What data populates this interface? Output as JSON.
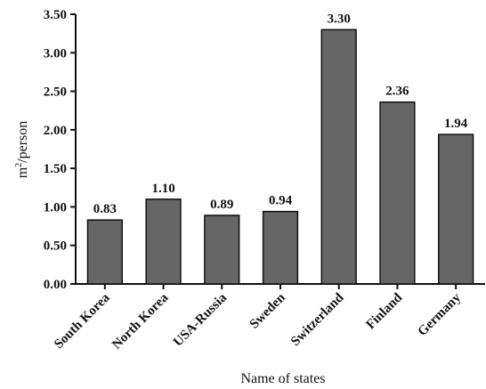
{
  "chart_data": {
    "type": "bar",
    "categories": [
      "South Korea",
      "North Korea",
      "USA-Russia",
      "Sweden",
      "Switzerland",
      "Finland",
      "Germany"
    ],
    "values": [
      0.83,
      1.1,
      0.89,
      0.94,
      3.3,
      2.36,
      1.94
    ],
    "value_labels": [
      "0.83",
      "1.10",
      "0.89",
      "0.94",
      "3.30",
      "2.36",
      "1.94"
    ],
    "xlabel": "Name of states",
    "ylabel_base": "m",
    "ylabel_sup": "2",
    "ylabel_rest": "/person",
    "ylim": [
      0,
      3.5
    ],
    "yticks": [
      "0.00",
      "0.50",
      "1.00",
      "1.50",
      "2.00",
      "2.50",
      "3.00",
      "3.50"
    ],
    "grid": false,
    "bar_color": "#666666",
    "bar_edge_color": "#111111"
  }
}
